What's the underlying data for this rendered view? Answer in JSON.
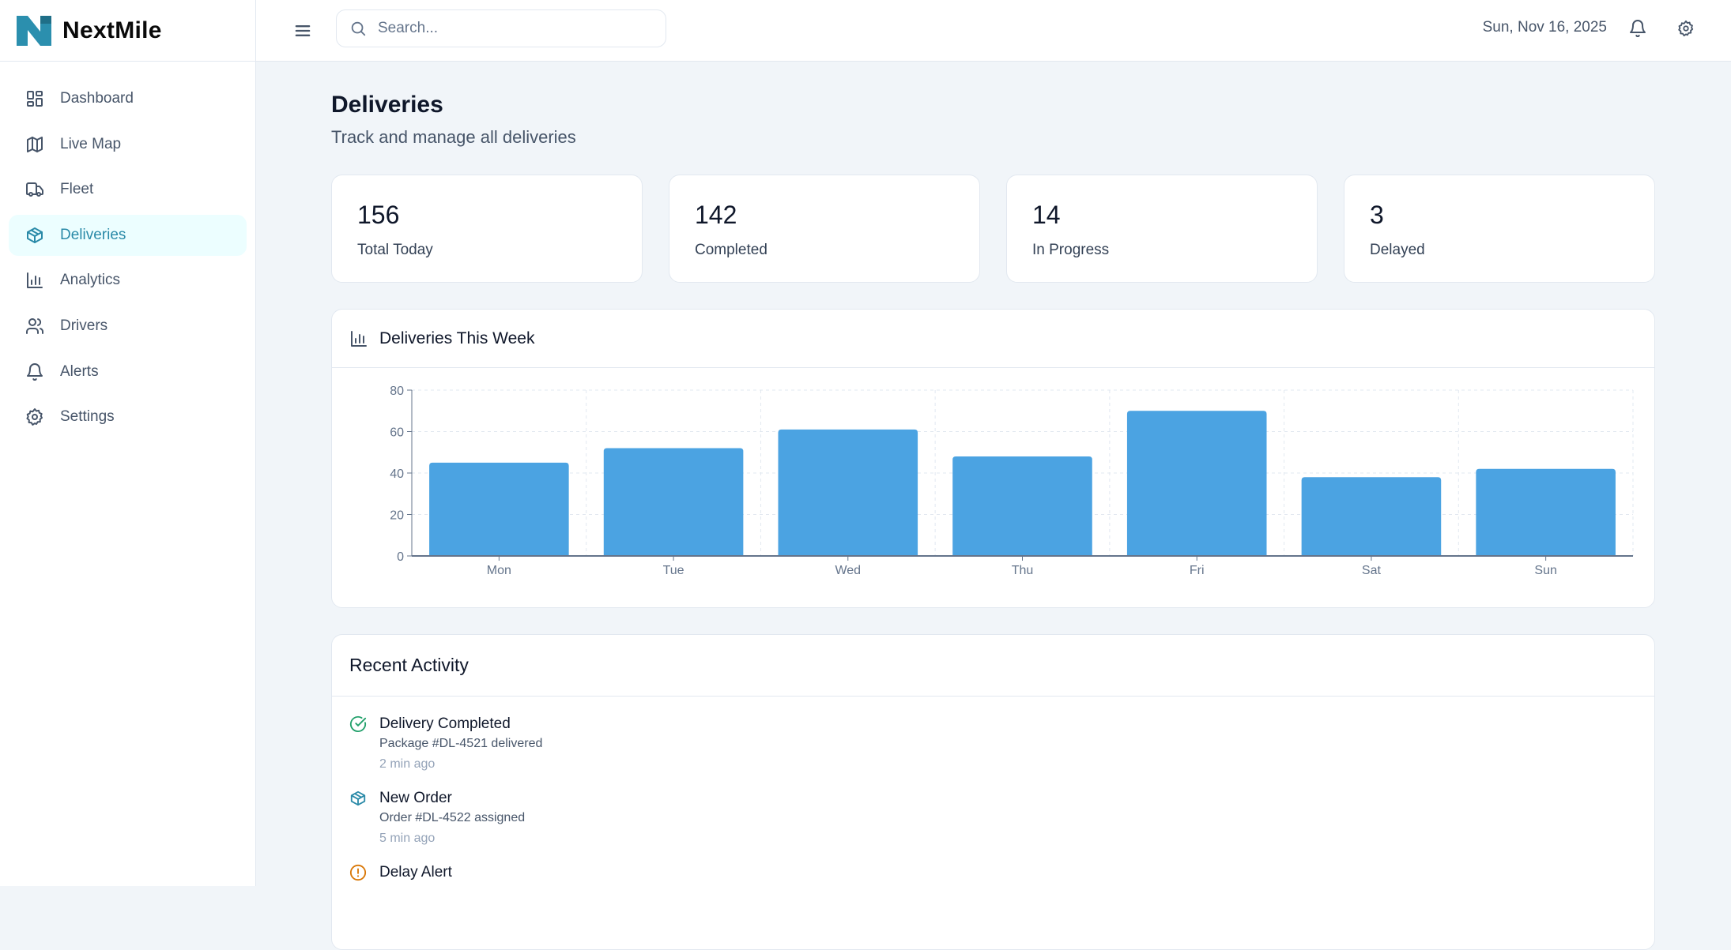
{
  "app": {
    "name": "NextMile",
    "logo_color": "#2b8fae"
  },
  "sidebar": {
    "items": [
      {
        "label": "Dashboard",
        "icon": "dashboard-icon"
      },
      {
        "label": "Live Map",
        "icon": "map-icon"
      },
      {
        "label": "Fleet",
        "icon": "truck-icon"
      },
      {
        "label": "Deliveries",
        "icon": "package-icon",
        "active": true
      },
      {
        "label": "Analytics",
        "icon": "bar-chart-icon"
      },
      {
        "label": "Drivers",
        "icon": "users-icon"
      },
      {
        "label": "Alerts",
        "icon": "bell-icon"
      },
      {
        "label": "Settings",
        "icon": "gear-icon"
      }
    ]
  },
  "header": {
    "search_placeholder": "Search...",
    "date": "Sun, Nov 16, 2025"
  },
  "page": {
    "title": "Deliveries",
    "subtitle": "Track and manage all deliveries"
  },
  "stats": [
    {
      "value": "156",
      "label": "Total Today"
    },
    {
      "value": "142",
      "label": "Completed"
    },
    {
      "value": "14",
      "label": "In Progress"
    },
    {
      "value": "3",
      "label": "Delayed"
    }
  ],
  "chart_card": {
    "title": "Deliveries This Week"
  },
  "chart_data": {
    "type": "bar",
    "title": "",
    "xlabel": "",
    "ylabel": "",
    "categories": [
      "Mon",
      "Tue",
      "Wed",
      "Thu",
      "Fri",
      "Sat",
      "Sun"
    ],
    "values": [
      45,
      52,
      61,
      48,
      70,
      38,
      42
    ],
    "ylim": [
      0,
      80
    ],
    "yticks": [
      0,
      20,
      40,
      60,
      80
    ],
    "grid": true,
    "color": "#4ba3e2"
  },
  "activity": {
    "title": "Recent Activity",
    "items": [
      {
        "title": "Delivery Completed",
        "detail": "Package #DL-4521 delivered",
        "time": "2 min ago",
        "icon": "check-circle-icon",
        "color": "#22a06b"
      },
      {
        "title": "New Order",
        "detail": "Order #DL-4522 assigned",
        "time": "5 min ago",
        "icon": "package-icon",
        "color": "#2a8aa8"
      },
      {
        "title": "Delay Alert",
        "icon": "alert-circle-icon",
        "color": "#d97706"
      }
    ]
  }
}
